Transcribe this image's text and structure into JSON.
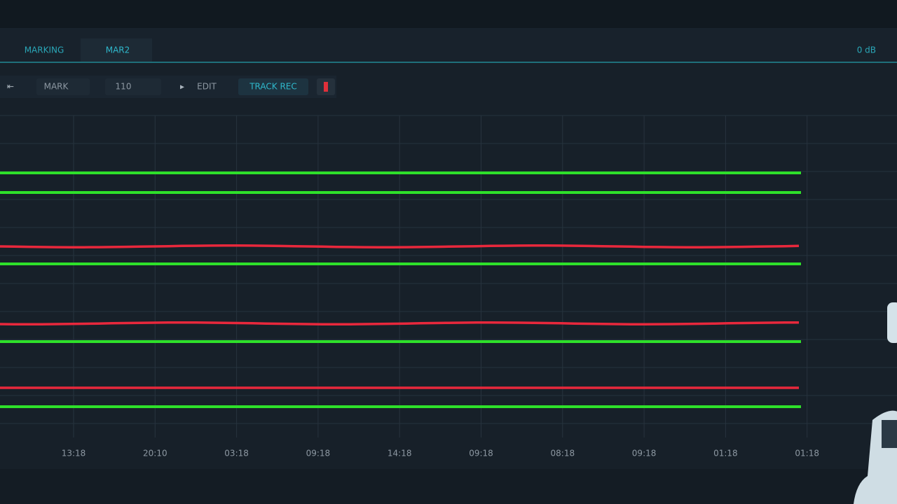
{
  "tabs": [
    "MARKING",
    "MAR2"
  ],
  "status": "0 dB",
  "toolbar": {
    "mode": "MARK",
    "level": "110",
    "edit": "EDIT",
    "record": "TRACK REC"
  },
  "time_labels": [
    "13:18",
    "20:10",
    "03:18",
    "09:18",
    "14:18",
    "09:18",
    "08:18",
    "09:18",
    "01:18",
    "01:18"
  ]
}
